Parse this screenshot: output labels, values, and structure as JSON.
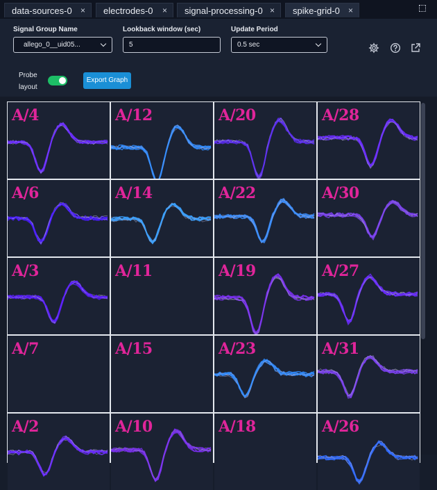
{
  "tabs": [
    {
      "label": "data-sources-0",
      "close": "×"
    },
    {
      "label": "electrodes-0",
      "close": "×"
    },
    {
      "label": "signal-processing-0",
      "close": "×"
    },
    {
      "label": "spike-grid-0",
      "close": "×"
    }
  ],
  "controls": {
    "signal_group_label": "Signal Group Name",
    "signal_group_value": "allego_0__uid05...",
    "lookback_label": "Lookback window (sec)",
    "lookback_value": "5",
    "update_label": "Update Period",
    "update_value": "0.5 sec",
    "probe_label_line1": "Probe",
    "probe_label_line2": "layout",
    "probe_on": true,
    "export_label": "Export Graph"
  },
  "icons": {
    "settings": "gear-icon",
    "help": "help-circle-icon",
    "external": "external-link-icon",
    "maximize": "maximize-icon"
  },
  "grid": {
    "channels": [
      {
        "label": "A/4",
        "has_signal": true,
        "color": "#6a2cff"
      },
      {
        "label": "A/12",
        "has_signal": true,
        "color": "#2f8cff"
      },
      {
        "label": "A/20",
        "has_signal": true,
        "color": "#5a2cf0"
      },
      {
        "label": "A/28",
        "has_signal": true,
        "color": "#6a2cff"
      },
      {
        "label": "A/6",
        "has_signal": true,
        "color": "#4a1cff"
      },
      {
        "label": "A/14",
        "has_signal": true,
        "color": "#3aa0ff"
      },
      {
        "label": "A/22",
        "has_signal": true,
        "color": "#3a8fff"
      },
      {
        "label": "A/30",
        "has_signal": true,
        "color": "#7a40f0"
      },
      {
        "label": "A/3",
        "has_signal": true,
        "color": "#5a1cff"
      },
      {
        "label": "A/11",
        "has_signal": false,
        "color": "#5a1cff"
      },
      {
        "label": "A/19",
        "has_signal": true,
        "color": "#7a30f0"
      },
      {
        "label": "A/27",
        "has_signal": true,
        "color": "#6a2cff"
      },
      {
        "label": "A/7",
        "has_signal": false,
        "color": "#5a1cff"
      },
      {
        "label": "A/15",
        "has_signal": false,
        "color": "#5a1cff"
      },
      {
        "label": "A/23",
        "has_signal": true,
        "color": "#2f8cff"
      },
      {
        "label": "A/31",
        "has_signal": true,
        "color": "#7a40f0"
      },
      {
        "label": "A/2",
        "has_signal": true,
        "color": "#6a2cff"
      },
      {
        "label": "A/10",
        "has_signal": true,
        "color": "#7a30f0"
      },
      {
        "label": "A/18",
        "has_signal": false,
        "color": "#5a1cff"
      },
      {
        "label": "A/26",
        "has_signal": true,
        "color": "#2f6cff"
      }
    ]
  }
}
